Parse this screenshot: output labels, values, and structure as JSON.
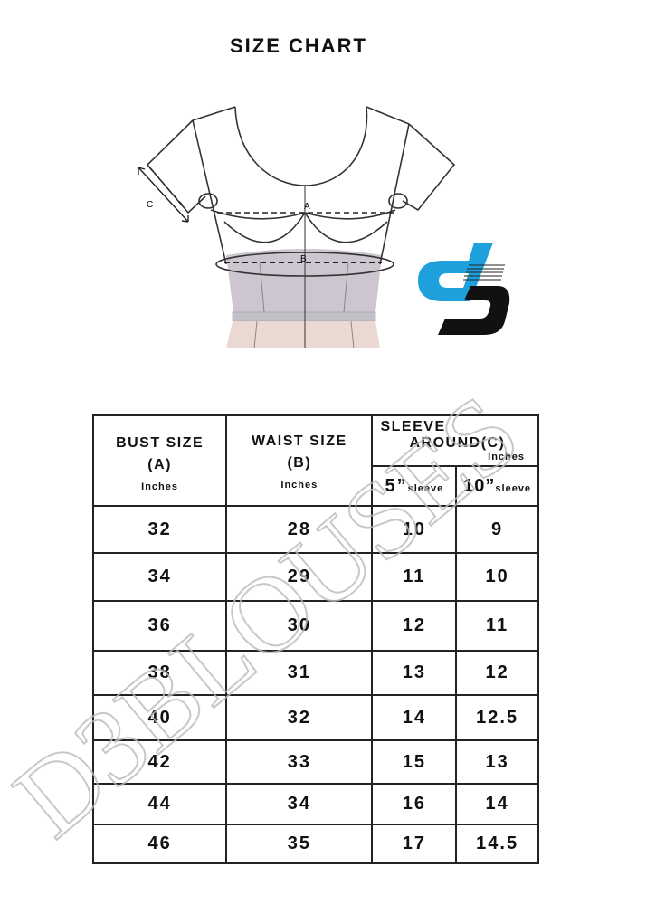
{
  "title": "SIZE CHART",
  "diagram": {
    "label_a": "A",
    "label_b": "B",
    "label_c": "C"
  },
  "logo": {
    "colors": {
      "blue": "#1ea0dc",
      "black": "#111111"
    }
  },
  "watermark": "D3BLOUSES",
  "table": {
    "headers": {
      "bust": "BUST SIZE",
      "bust_code": "(A)",
      "bust_unit": "Inches",
      "waist": "WAIST SIZE",
      "waist_code": "(B)",
      "waist_unit": "Inches",
      "sleeve_line1": "SLEEVE",
      "sleeve_line2": "AROUND",
      "sleeve_code": "(C)",
      "sleeve_unit": "Inches",
      "sleeve5": "5”",
      "sleeve10": "10”",
      "sleeve_word": "sleeve"
    },
    "rows": [
      [
        "32",
        "28",
        "10",
        "9"
      ],
      [
        "34",
        "29",
        "11",
        "10"
      ],
      [
        "36",
        "30",
        "12",
        "11"
      ],
      [
        "38",
        "31",
        "13",
        "12"
      ],
      [
        "40",
        "32",
        "14",
        "12.5"
      ],
      [
        "42",
        "33",
        "15",
        "13"
      ],
      [
        "44",
        "34",
        "16",
        "14"
      ],
      [
        "46",
        "35",
        "17",
        "14.5"
      ]
    ]
  }
}
